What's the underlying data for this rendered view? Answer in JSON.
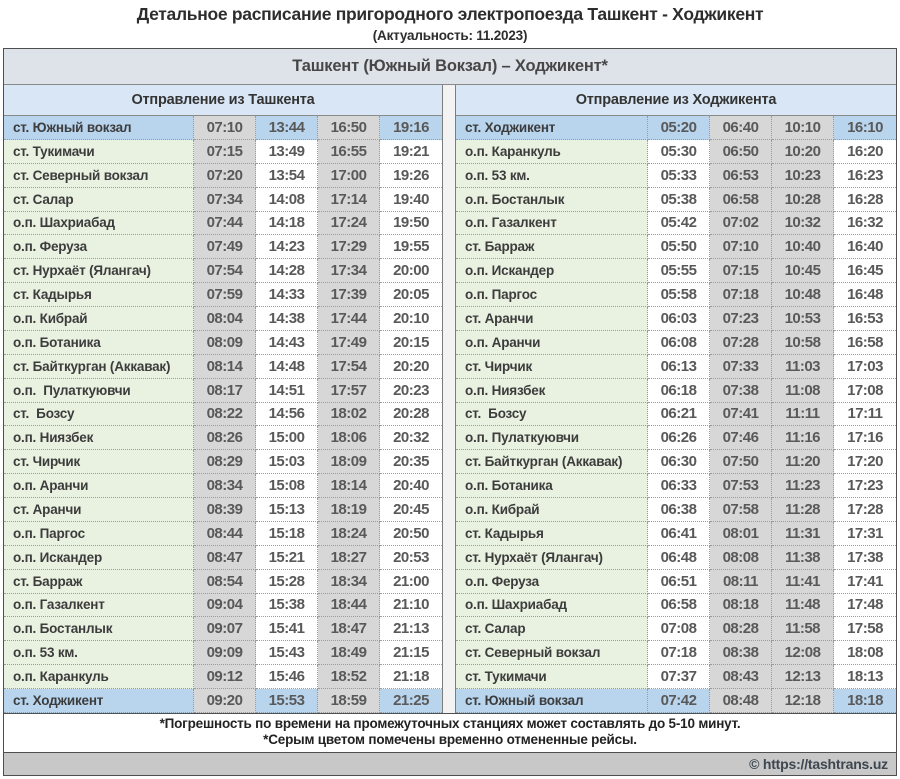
{
  "title": "Детальное расписание пригородного электропоезда Ташкент - Ходжикент",
  "subtitle": "(Актуальность: 11.2023)",
  "board": {
    "route_header": "Ташкент (Южный Вокзал) – Ходжикент*",
    "left": {
      "header": "Отправление из Ташкента",
      "cancelled_columns": [
        0,
        2
      ],
      "rows": [
        {
          "station": "ст. Южный вокзал",
          "times": [
            "07:10",
            "13:44",
            "16:50",
            "19:16"
          ],
          "highlight": true
        },
        {
          "station": "ст. Тукимачи",
          "times": [
            "07:15",
            "13:49",
            "16:55",
            "19:21"
          ],
          "highlight": false
        },
        {
          "station": "ст. Северный вокзал",
          "times": [
            "07:20",
            "13:54",
            "17:00",
            "19:26"
          ],
          "highlight": false
        },
        {
          "station": "ст. Салар",
          "times": [
            "07:34",
            "14:08",
            "17:14",
            "19:40"
          ],
          "highlight": false
        },
        {
          "station": "о.п. Шахриабад",
          "times": [
            "07:44",
            "14:18",
            "17:24",
            "19:50"
          ],
          "highlight": false
        },
        {
          "station": "о.п. Феруза",
          "times": [
            "07:49",
            "14:23",
            "17:29",
            "19:55"
          ],
          "highlight": false
        },
        {
          "station": "ст. Нурхаёт (Ялангач)",
          "times": [
            "07:54",
            "14:28",
            "17:34",
            "20:00"
          ],
          "highlight": false
        },
        {
          "station": "ст. Кадырья",
          "times": [
            "07:59",
            "14:33",
            "17:39",
            "20:05"
          ],
          "highlight": false
        },
        {
          "station": "о.п. Кибрай",
          "times": [
            "08:04",
            "14:38",
            "17:44",
            "20:10"
          ],
          "highlight": false
        },
        {
          "station": "о.п. Ботаника",
          "times": [
            "08:09",
            "14:43",
            "17:49",
            "20:15"
          ],
          "highlight": false
        },
        {
          "station": "ст. Байткурган (Аккавак)",
          "times": [
            "08:14",
            "14:48",
            "17:54",
            "20:20"
          ],
          "highlight": false
        },
        {
          "station": "о.п.  Пулаткуювчи",
          "times": [
            "08:17",
            "14:51",
            "17:57",
            "20:23"
          ],
          "highlight": false
        },
        {
          "station": "ст.  Бозсу",
          "times": [
            "08:22",
            "14:56",
            "18:02",
            "20:28"
          ],
          "highlight": false
        },
        {
          "station": "о.п. Ниязбек",
          "times": [
            "08:26",
            "15:00",
            "18:06",
            "20:32"
          ],
          "highlight": false
        },
        {
          "station": "ст. Чирчик",
          "times": [
            "08:29",
            "15:03",
            "18:09",
            "20:35"
          ],
          "highlight": false
        },
        {
          "station": "о.п. Аранчи",
          "times": [
            "08:34",
            "15:08",
            "18:14",
            "20:40"
          ],
          "highlight": false
        },
        {
          "station": "ст. Аранчи",
          "times": [
            "08:39",
            "15:13",
            "18:19",
            "20:45"
          ],
          "highlight": false
        },
        {
          "station": "о.п. Паргос",
          "times": [
            "08:44",
            "15:18",
            "18:24",
            "20:50"
          ],
          "highlight": false
        },
        {
          "station": "о.п. Искандер",
          "times": [
            "08:47",
            "15:21",
            "18:27",
            "20:53"
          ],
          "highlight": false
        },
        {
          "station": "ст. Барраж",
          "times": [
            "08:54",
            "15:28",
            "18:34",
            "21:00"
          ],
          "highlight": false
        },
        {
          "station": "о.п. Газалкент",
          "times": [
            "09:04",
            "15:38",
            "18:44",
            "21:10"
          ],
          "highlight": false
        },
        {
          "station": "о.п. Бостанлык",
          "times": [
            "09:07",
            "15:41",
            "18:47",
            "21:13"
          ],
          "highlight": false
        },
        {
          "station": "о.п. 53 км.",
          "times": [
            "09:09",
            "15:43",
            "18:49",
            "21:15"
          ],
          "highlight": false
        },
        {
          "station": "о.п. Каранкуль",
          "times": [
            "09:12",
            "15:46",
            "18:52",
            "21:18"
          ],
          "highlight": false
        },
        {
          "station": "ст. Ходжикент",
          "times": [
            "09:20",
            "15:53",
            "18:59",
            "21:25"
          ],
          "highlight": true
        }
      ]
    },
    "right": {
      "header": "Отправление из Ходжикента",
      "cancelled_columns": [
        1,
        2
      ],
      "rows": [
        {
          "station": "ст. Ходжикент",
          "times": [
            "05:20",
            "06:40",
            "10:10",
            "16:10"
          ],
          "highlight": true
        },
        {
          "station": "о.п. Каранкуль",
          "times": [
            "05:30",
            "06:50",
            "10:20",
            "16:20"
          ],
          "highlight": false
        },
        {
          "station": "о.п. 53 км.",
          "times": [
            "05:33",
            "06:53",
            "10:23",
            "16:23"
          ],
          "highlight": false
        },
        {
          "station": "о.п. Бостанлык",
          "times": [
            "05:38",
            "06:58",
            "10:28",
            "16:28"
          ],
          "highlight": false
        },
        {
          "station": "о.п. Газалкент",
          "times": [
            "05:42",
            "07:02",
            "10:32",
            "16:32"
          ],
          "highlight": false
        },
        {
          "station": "ст. Барраж",
          "times": [
            "05:50",
            "07:10",
            "10:40",
            "16:40"
          ],
          "highlight": false
        },
        {
          "station": "о.п. Искандер",
          "times": [
            "05:55",
            "07:15",
            "10:45",
            "16:45"
          ],
          "highlight": false
        },
        {
          "station": "о.п. Паргос",
          "times": [
            "05:58",
            "07:18",
            "10:48",
            "16:48"
          ],
          "highlight": false
        },
        {
          "station": "ст. Аранчи",
          "times": [
            "06:03",
            "07:23",
            "10:53",
            "16:53"
          ],
          "highlight": false
        },
        {
          "station": "о.п. Аранчи",
          "times": [
            "06:08",
            "07:28",
            "10:58",
            "16:58"
          ],
          "highlight": false
        },
        {
          "station": "ст. Чирчик",
          "times": [
            "06:13",
            "07:33",
            "11:03",
            "17:03"
          ],
          "highlight": false
        },
        {
          "station": "о.п. Ниязбек",
          "times": [
            "06:18",
            "07:38",
            "11:08",
            "17:08"
          ],
          "highlight": false
        },
        {
          "station": "ст.  Бозсу",
          "times": [
            "06:21",
            "07:41",
            "11:11",
            "17:11"
          ],
          "highlight": false
        },
        {
          "station": "о.п. Пулаткуювчи",
          "times": [
            "06:26",
            "07:46",
            "11:16",
            "17:16"
          ],
          "highlight": false
        },
        {
          "station": "ст. Байткурган (Аккавак)",
          "times": [
            "06:30",
            "07:50",
            "11:20",
            "17:20"
          ],
          "highlight": false
        },
        {
          "station": "о.п. Ботаника",
          "times": [
            "06:33",
            "07:53",
            "11:23",
            "17:23"
          ],
          "highlight": false
        },
        {
          "station": "о.п. Кибрай",
          "times": [
            "06:38",
            "07:58",
            "11:28",
            "17:28"
          ],
          "highlight": false
        },
        {
          "station": "ст. Кадырья",
          "times": [
            "06:41",
            "08:01",
            "11:31",
            "17:31"
          ],
          "highlight": false
        },
        {
          "station": "ст. Нурхаёт (Ялангач)",
          "times": [
            "06:48",
            "08:08",
            "11:38",
            "17:38"
          ],
          "highlight": false
        },
        {
          "station": "о.п. Феруза",
          "times": [
            "06:51",
            "08:11",
            "11:41",
            "17:41"
          ],
          "highlight": false
        },
        {
          "station": "о.п. Шахриабад",
          "times": [
            "06:58",
            "08:18",
            "11:48",
            "17:48"
          ],
          "highlight": false
        },
        {
          "station": "ст. Салар",
          "times": [
            "07:08",
            "08:28",
            "11:58",
            "17:58"
          ],
          "highlight": false
        },
        {
          "station": "ст. Северный вокзал",
          "times": [
            "07:18",
            "08:38",
            "12:08",
            "18:08"
          ],
          "highlight": false
        },
        {
          "station": "ст. Тукимачи",
          "times": [
            "07:37",
            "08:43",
            "12:13",
            "18:13"
          ],
          "highlight": false
        },
        {
          "station": "ст. Южный вокзал",
          "times": [
            "07:42",
            "08:48",
            "12:18",
            "18:18"
          ],
          "highlight": true
        }
      ]
    },
    "notes": [
      "*Погрешность по времени на промежуточных станциях может составлять до 5-10 минут.",
      "*Серым цветом помечены временно отмененные рейсы."
    ],
    "copyright": "© https://tashtrans.uz"
  },
  "colors": {
    "highlight_blue": "#b9d5ee",
    "station_green": "#e9f2e1",
    "cancelled_gray": "#d7d7d7",
    "route_header_band": "#dee3e9",
    "section_header_band": "#d8e6f5",
    "time_text": "#595959",
    "copyright_band": "#c8c8c8"
  }
}
